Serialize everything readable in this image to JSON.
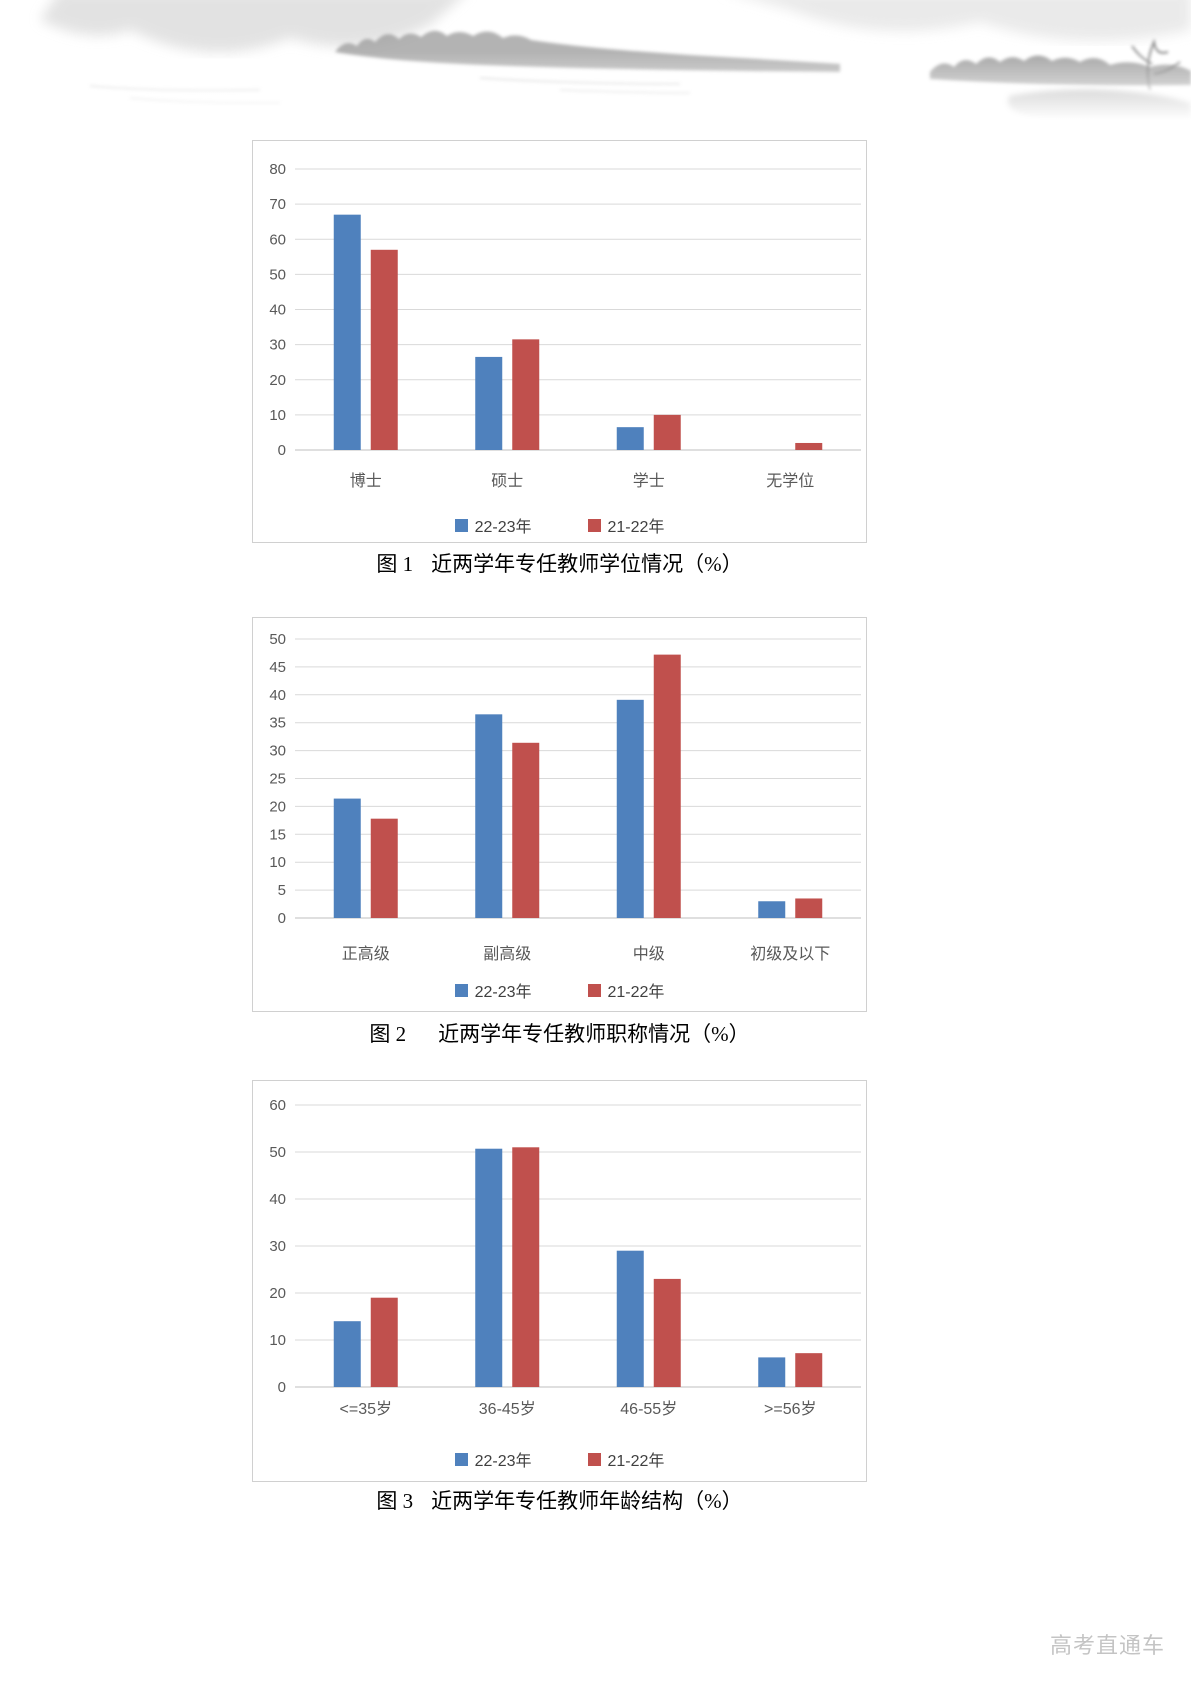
{
  "page": {
    "watermark": "高考直通车"
  },
  "colors": {
    "series_2223": "#4F81BD",
    "series_2122": "#C0504D",
    "gridline": "#D9D9D9",
    "axis_line": "#BFBFBF",
    "axis_text": "#595959",
    "legend_text": "#404040",
    "caption_text": "#000000",
    "card_border": "#D0D0D0",
    "watermark_text": "#C4C4C4"
  },
  "legend": {
    "series1": "22-23年",
    "series2": "21-22年"
  },
  "chart_data": [
    {
      "type": "bar",
      "fig_label": "图 1",
      "caption": "近两学年专任教师学位情况（%）",
      "title": "图 1　近两学年专任教师学位情况（%）",
      "categories": [
        "博士",
        "硕士",
        "学士",
        "无学位"
      ],
      "series": [
        {
          "name": "22-23年",
          "color": "#4F81BD",
          "values": [
            67,
            26.5,
            6.5,
            0
          ]
        },
        {
          "name": "21-22年",
          "color": "#C0504D",
          "values": [
            57,
            31.5,
            10,
            2
          ]
        }
      ],
      "xlabel": "",
      "ylabel": "",
      "ylim": [
        0,
        80
      ],
      "yticks": [
        0,
        10,
        20,
        30,
        40,
        50,
        60,
        70,
        80
      ],
      "grid": true,
      "legend_position": "bottom"
    },
    {
      "type": "bar",
      "fig_label": "图 2",
      "caption": "近两学年专任教师职称情况（%）",
      "title": "图 2　近两学年专任教师职称情况（%）",
      "categories": [
        "正高级",
        "副高级",
        "中级",
        "初级及以下"
      ],
      "series": [
        {
          "name": "22-23年",
          "color": "#4F81BD",
          "values": [
            21.4,
            36.5,
            39.1,
            3
          ]
        },
        {
          "name": "21-22年",
          "color": "#C0504D",
          "values": [
            17.8,
            31.4,
            47.2,
            3.5
          ]
        }
      ],
      "xlabel": "",
      "ylabel": "",
      "ylim": [
        0,
        50
      ],
      "yticks": [
        0,
        5,
        10,
        15,
        20,
        25,
        30,
        35,
        40,
        45,
        50
      ],
      "grid": true,
      "legend_position": "bottom"
    },
    {
      "type": "bar",
      "fig_label": "图 3",
      "caption": "近两学年专任教师年龄结构（%）",
      "title": "图 3　近两学年专任教师年龄结构（%）",
      "categories": [
        "<=35岁",
        "36-45岁",
        "46-55岁",
        ">=56岁"
      ],
      "series": [
        {
          "name": "22-23年",
          "color": "#4F81BD",
          "values": [
            14,
            50.7,
            29,
            6.3
          ]
        },
        {
          "name": "21-22年",
          "color": "#C0504D",
          "values": [
            19,
            51,
            23,
            7.2
          ]
        }
      ],
      "xlabel": "",
      "ylabel": "",
      "ylim": [
        0,
        60
      ],
      "yticks": [
        0,
        10,
        20,
        30,
        40,
        50,
        60
      ],
      "grid": true,
      "legend_position": "bottom"
    }
  ]
}
